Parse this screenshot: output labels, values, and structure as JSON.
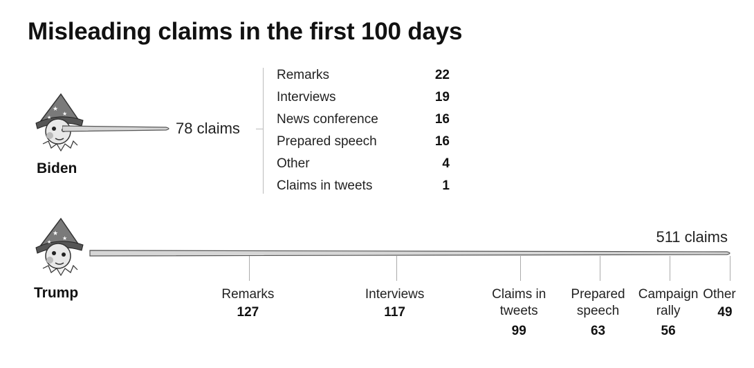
{
  "title": "Misleading claims in the first 100 days",
  "chart_data": {
    "type": "bar",
    "title": "Misleading claims in the first 100 days",
    "series": [
      {
        "name": "Biden",
        "total_label": "78 claims",
        "total": 78,
        "categories": [
          "Remarks",
          "Interviews",
          "News conference",
          "Prepared speech",
          "Other",
          "Claims in tweets"
        ],
        "values": [
          22,
          19,
          16,
          16,
          4,
          1
        ]
      },
      {
        "name": "Trump",
        "total_label": "511 claims",
        "total": 511,
        "categories": [
          "Remarks",
          "Interviews",
          "Claims in\ntweets",
          "Prepared\nspeech",
          "Campaign\nrally",
          "Other"
        ],
        "values": [
          127,
          117,
          99,
          63,
          56,
          49
        ]
      }
    ]
  },
  "colors": {
    "nose_fill": "#d6d6d6",
    "nose_stroke": "#555555",
    "text": "#111111"
  },
  "icons": [
    "pinocchio-icon"
  ]
}
